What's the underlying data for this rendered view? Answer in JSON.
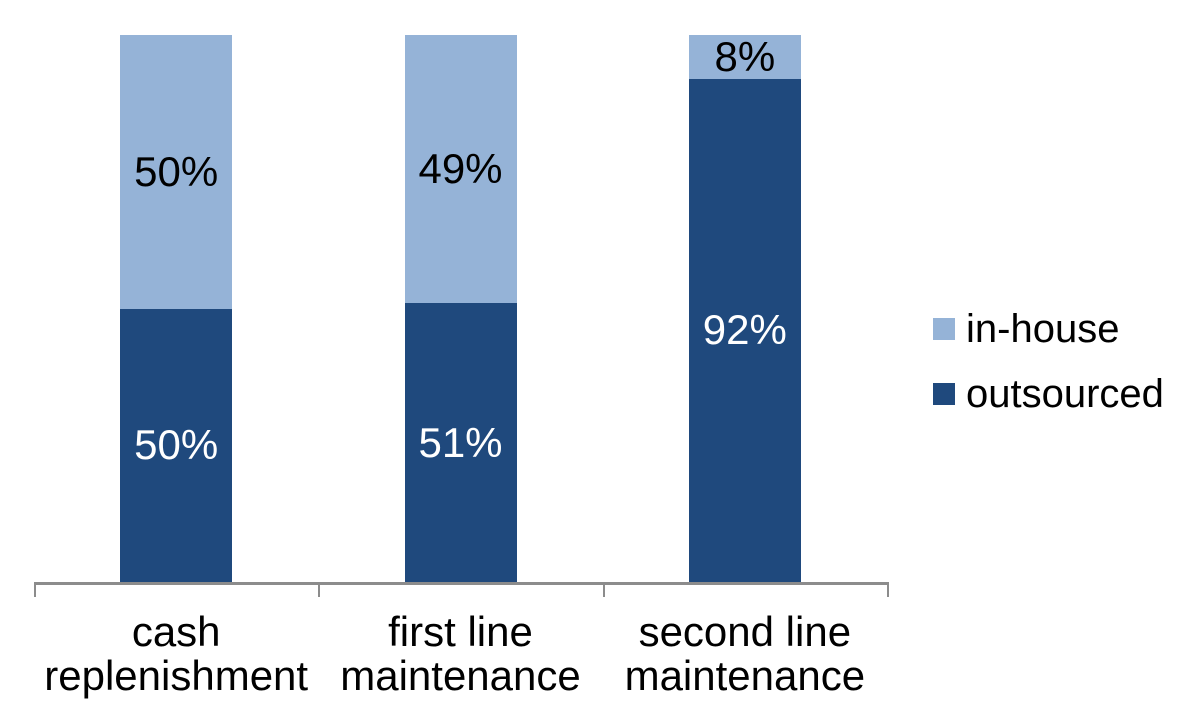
{
  "chart_data": {
    "type": "bar",
    "subtype": "stacked-100-percent-column",
    "title": "",
    "xlabel": "",
    "ylabel": "",
    "ylim": [
      0,
      100
    ],
    "grid": false,
    "legend_position": "right",
    "background_color": "#FFFFFF",
    "axis_color": "#8C8C8C",
    "categories": [
      "cash\nreplenishment",
      "first line\nmaintenance",
      "second line\nmaintenance"
    ],
    "series": [
      {
        "name": "in-house",
        "color": "#95B3D7",
        "label_color": "#000000",
        "values": [
          50,
          49,
          8
        ],
        "data_labels": [
          "50%",
          "49%",
          "8%"
        ]
      },
      {
        "name": "outsourced",
        "color": "#1F497D",
        "label_color": "#FFFFFF",
        "values": [
          50,
          51,
          92
        ],
        "data_labels": [
          "50%",
          "51%",
          "92%"
        ]
      }
    ]
  },
  "legend": {
    "items": [
      {
        "label": "in-house",
        "color": "#95B3D7"
      },
      {
        "label": "outsourced",
        "color": "#1F497D"
      }
    ]
  }
}
